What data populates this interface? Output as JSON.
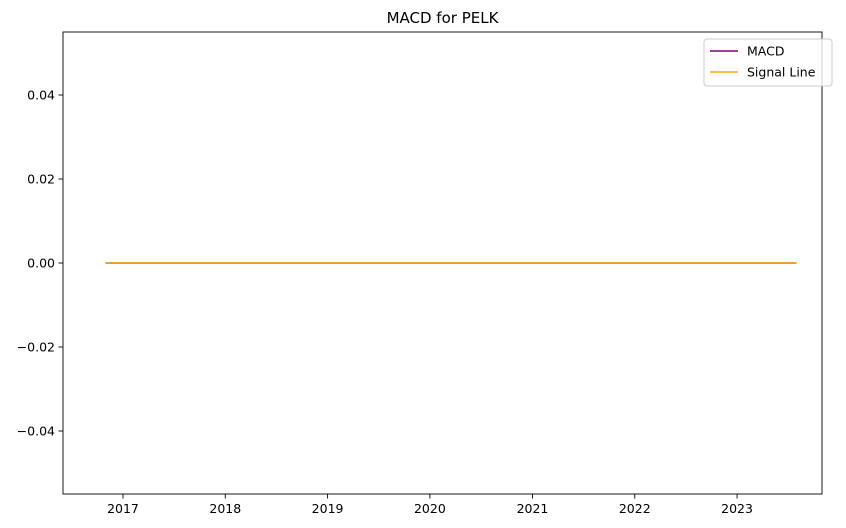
{
  "chart_data": {
    "type": "line",
    "title": "MACD for PELK",
    "xlabel": "",
    "ylabel": "",
    "x_axis_kind": "date",
    "xlim": [
      "2016-06-01",
      "2023-10-31"
    ],
    "ylim": [
      -0.055,
      0.055
    ],
    "x_ticks": [
      "2017",
      "2018",
      "2019",
      "2020",
      "2021",
      "2022",
      "2023"
    ],
    "y_ticks": [
      -0.04,
      -0.02,
      0.0,
      0.02,
      0.04
    ],
    "y_tick_labels": [
      "−0.04",
      "−0.02",
      "0.00",
      "0.02",
      "0.04"
    ],
    "grid": false,
    "legend_position": "top-right",
    "x": [
      "2016-10-31",
      "2023-08-01"
    ],
    "series": [
      {
        "name": "MACD",
        "color": "#800080",
        "values": [
          0.0,
          0.0
        ]
      },
      {
        "name": "Signal Line",
        "color": "#ffa500",
        "values": [
          0.0,
          0.0
        ]
      }
    ]
  }
}
